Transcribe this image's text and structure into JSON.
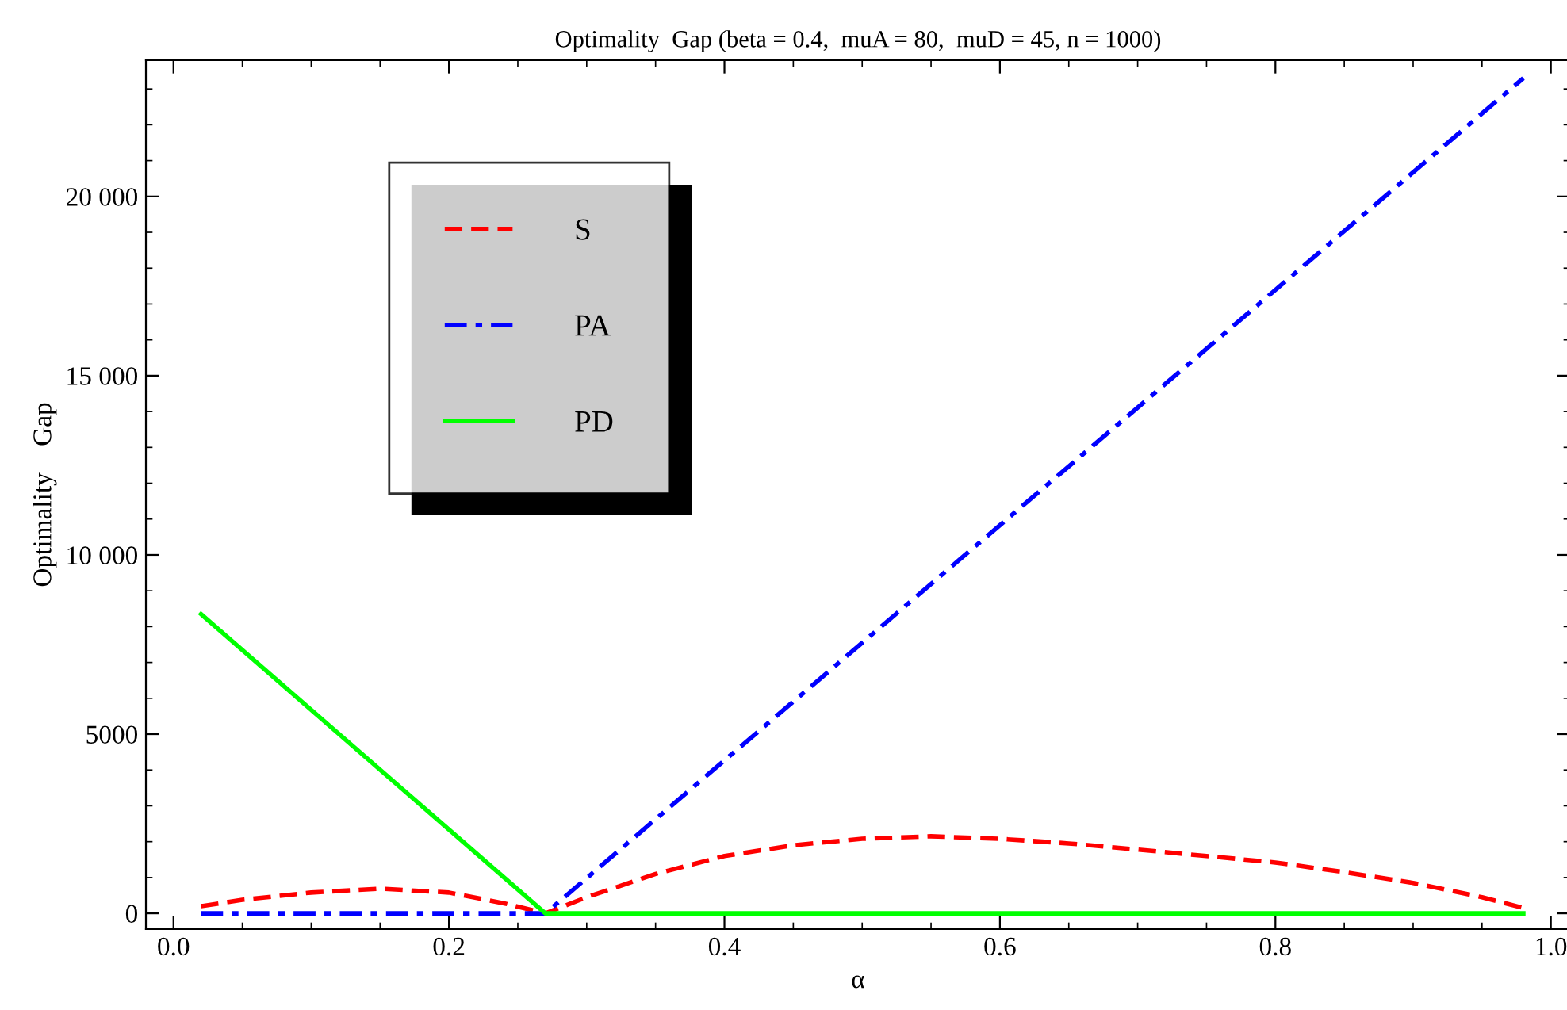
{
  "chart_data": {
    "type": "line",
    "title": "Optimality  Gap (beta = 0.4,  muA = 80,  muD = 45, n = 1000)",
    "xlabel": "α",
    "ylabel": "Optimality    Gap",
    "series": [
      {
        "name": "S",
        "color": "#ff0000",
        "line_style": "dashed",
        "x": [
          0.02,
          0.05,
          0.1,
          0.15,
          0.2,
          0.24,
          0.27,
          0.3,
          0.35,
          0.4,
          0.45,
          0.5,
          0.55,
          0.6,
          0.65,
          0.7,
          0.75,
          0.8,
          0.85,
          0.9,
          0.95,
          0.98
        ],
        "values": [
          200,
          380,
          580,
          690,
          580,
          280,
          0,
          450,
          1100,
          1600,
          1900,
          2080,
          2150,
          2080,
          1950,
          1780,
          1600,
          1420,
          1150,
          850,
          450,
          150
        ]
      },
      {
        "name": "PA",
        "color": "#0000ff",
        "line_style": "dashdot",
        "x": [
          0.02,
          0.27,
          0.98
        ],
        "values": [
          0,
          0,
          23300
        ]
      },
      {
        "name": "PD",
        "color": "#00ff00",
        "line_style": "solid",
        "x": [
          0.02,
          0.27,
          0.98
        ],
        "values": [
          8350,
          0,
          0
        ]
      }
    ],
    "xlim": [
      -0.02,
      1.014
    ],
    "ylim": [
      -440,
      23800
    ],
    "xticks": [
      {
        "value": 0,
        "label": "0.0"
      },
      0.2,
      0.4,
      0.6,
      0.8,
      {
        "value": 1,
        "label": "1.0"
      }
    ],
    "yticks": [
      0,
      5000,
      {
        "value": 10000,
        "label": "10 000"
      },
      {
        "value": 15000,
        "label": "15 000"
      },
      {
        "value": 20000,
        "label": "20 000"
      }
    ],
    "grid": false,
    "legend": "top left"
  }
}
